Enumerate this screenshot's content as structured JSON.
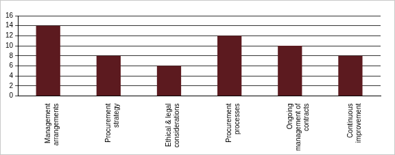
{
  "chart_data": {
    "type": "bar",
    "categories": [
      "Management arrangements",
      "Procurement strategy",
      "Ethical & legal considerations",
      "Procurement processes",
      "Ongoing management of contracts",
      "Continuous improvement"
    ],
    "values": [
      14,
      8,
      6,
      12,
      10,
      8
    ],
    "color": "#5c1a1f",
    "ylim": [
      0,
      16
    ],
    "yticks": [
      0,
      2,
      4,
      6,
      8,
      10,
      12,
      14,
      16
    ],
    "grid": true
  }
}
